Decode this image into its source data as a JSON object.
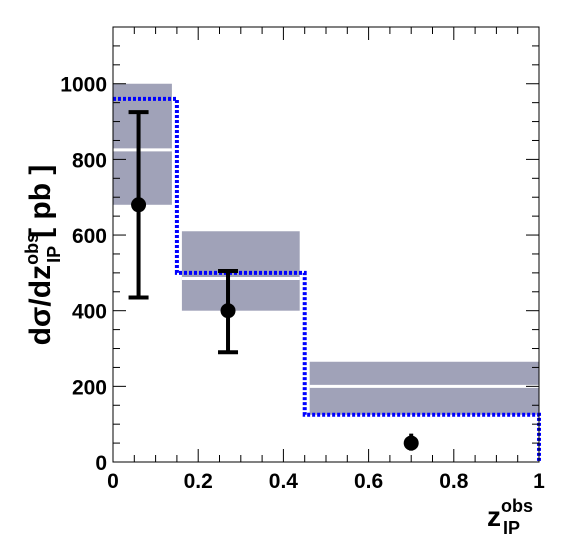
{
  "chart_data": {
    "type": "bar",
    "ylabel": "dσ/dz",
    "ylabel_superscript": "obs",
    "ylabel_subscript": "IP",
    "ylabel_unit": "[ pb ]",
    "xlabel": "z",
    "xlabel_superscript": "obs",
    "xlabel_subscript": "IP",
    "xlim": [
      0,
      1
    ],
    "ylim": [
      0,
      1150
    ],
    "x_ticks": [
      "0",
      "0.2",
      "0.4",
      "0.6",
      "0.8",
      "1"
    ],
    "y_ticks": [
      "0",
      "200",
      "400",
      "600",
      "800",
      "1000"
    ],
    "bins": [
      {
        "x_low": 0.0,
        "x_high": 0.15,
        "band_low": 680,
        "band_high": 1000,
        "central": 825,
        "dotted": 960
      },
      {
        "x_low": 0.15,
        "x_high": 0.45,
        "band_low": 400,
        "band_high": 610,
        "central": 485,
        "dotted": 500
      },
      {
        "x_low": 0.45,
        "x_high": 1.0,
        "band_low": 125,
        "band_high": 265,
        "central": 200,
        "dotted": 125
      }
    ],
    "points": [
      {
        "x": 0.06,
        "y": 680,
        "y_low": 435,
        "y_high": 925,
        "stat_low": 680,
        "stat_high": 680
      },
      {
        "x": 0.27,
        "y": 400,
        "y_low": 290,
        "y_high": 505,
        "stat_low": 400,
        "stat_high": 400
      },
      {
        "x": 0.7,
        "y": 50,
        "y_low": 30,
        "y_high": 75,
        "stat_low": 50,
        "stat_high": 50
      }
    ],
    "colors": {
      "band": "#a0a2b8",
      "central": "#ffffff",
      "dotted": "#0000ff",
      "points": "#000000"
    }
  }
}
